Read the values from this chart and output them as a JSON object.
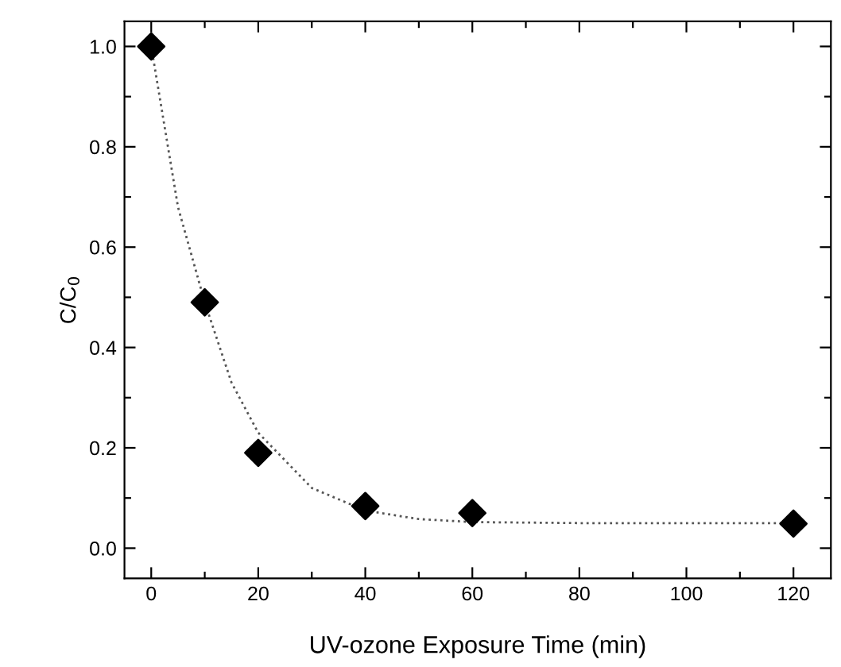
{
  "chart_data": {
    "type": "scatter",
    "xlabel": "UV-ozone Exposure Time (min)",
    "ylabel": "C/C$_{0}$",
    "xlim": [
      -5,
      127
    ],
    "ylim": [
      -0.06,
      1.05
    ],
    "xticks": [
      0,
      {
        "value": 10,
        "label": null
      },
      20,
      {
        "value": 30,
        "label": null
      },
      40,
      {
        "value": 50,
        "label": null
      },
      60,
      {
        "value": 70,
        "label": null
      },
      80,
      {
        "value": 90,
        "label": null
      },
      100,
      {
        "value": 110,
        "label": null
      },
      120
    ],
    "yticks": [
      {
        "value": 0,
        "label": "0.0"
      },
      {
        "value": 0.1,
        "label": null
      },
      {
        "value": 0.2,
        "label": "0.2"
      },
      {
        "value": 0.3,
        "label": null
      },
      {
        "value": 0.4,
        "label": "0.4"
      },
      {
        "value": 0.5,
        "label": null
      },
      {
        "value": 0.6,
        "label": "0.6"
      },
      {
        "value": 0.7,
        "label": null
      },
      {
        "value": 0.8,
        "label": "0.8"
      },
      {
        "value": 0.9,
        "label": null
      },
      {
        "value": 1.0,
        "label": "1.0"
      }
    ],
    "series": [
      {
        "type": "line",
        "color": "#555555",
        "line_style": "dotted",
        "marker": "none",
        "x": [
          0,
          5,
          10,
          15,
          20,
          30,
          40,
          50,
          60,
          80,
          120
        ],
        "values": [
          1.0,
          0.68,
          0.49,
          0.33,
          0.23,
          0.12,
          0.075,
          0.058,
          0.052,
          0.05,
          0.05
        ]
      },
      {
        "color": "#000000",
        "marker": "diamond",
        "x": [
          0,
          10,
          20,
          40,
          60,
          120
        ],
        "values": [
          1.0,
          0.49,
          0.19,
          0.084,
          0.07,
          0.049
        ]
      }
    ]
  }
}
